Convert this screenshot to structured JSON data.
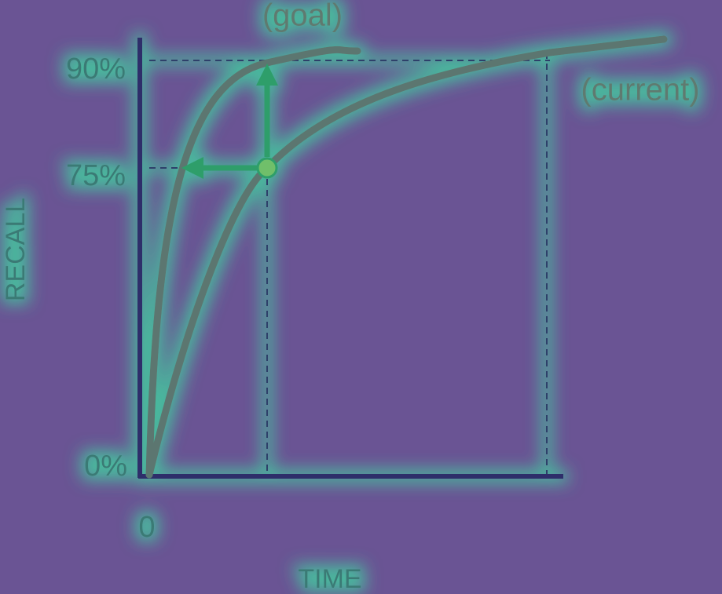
{
  "curves": {
    "goal": {
      "label": "(goal)"
    },
    "current": {
      "label": "(current)"
    }
  },
  "axes": {
    "y": {
      "title": "RECALL",
      "labels": [
        "90%",
        "75%",
        "0%"
      ]
    },
    "x": {
      "title": "TIME",
      "labels": [
        "0"
      ]
    }
  }
}
